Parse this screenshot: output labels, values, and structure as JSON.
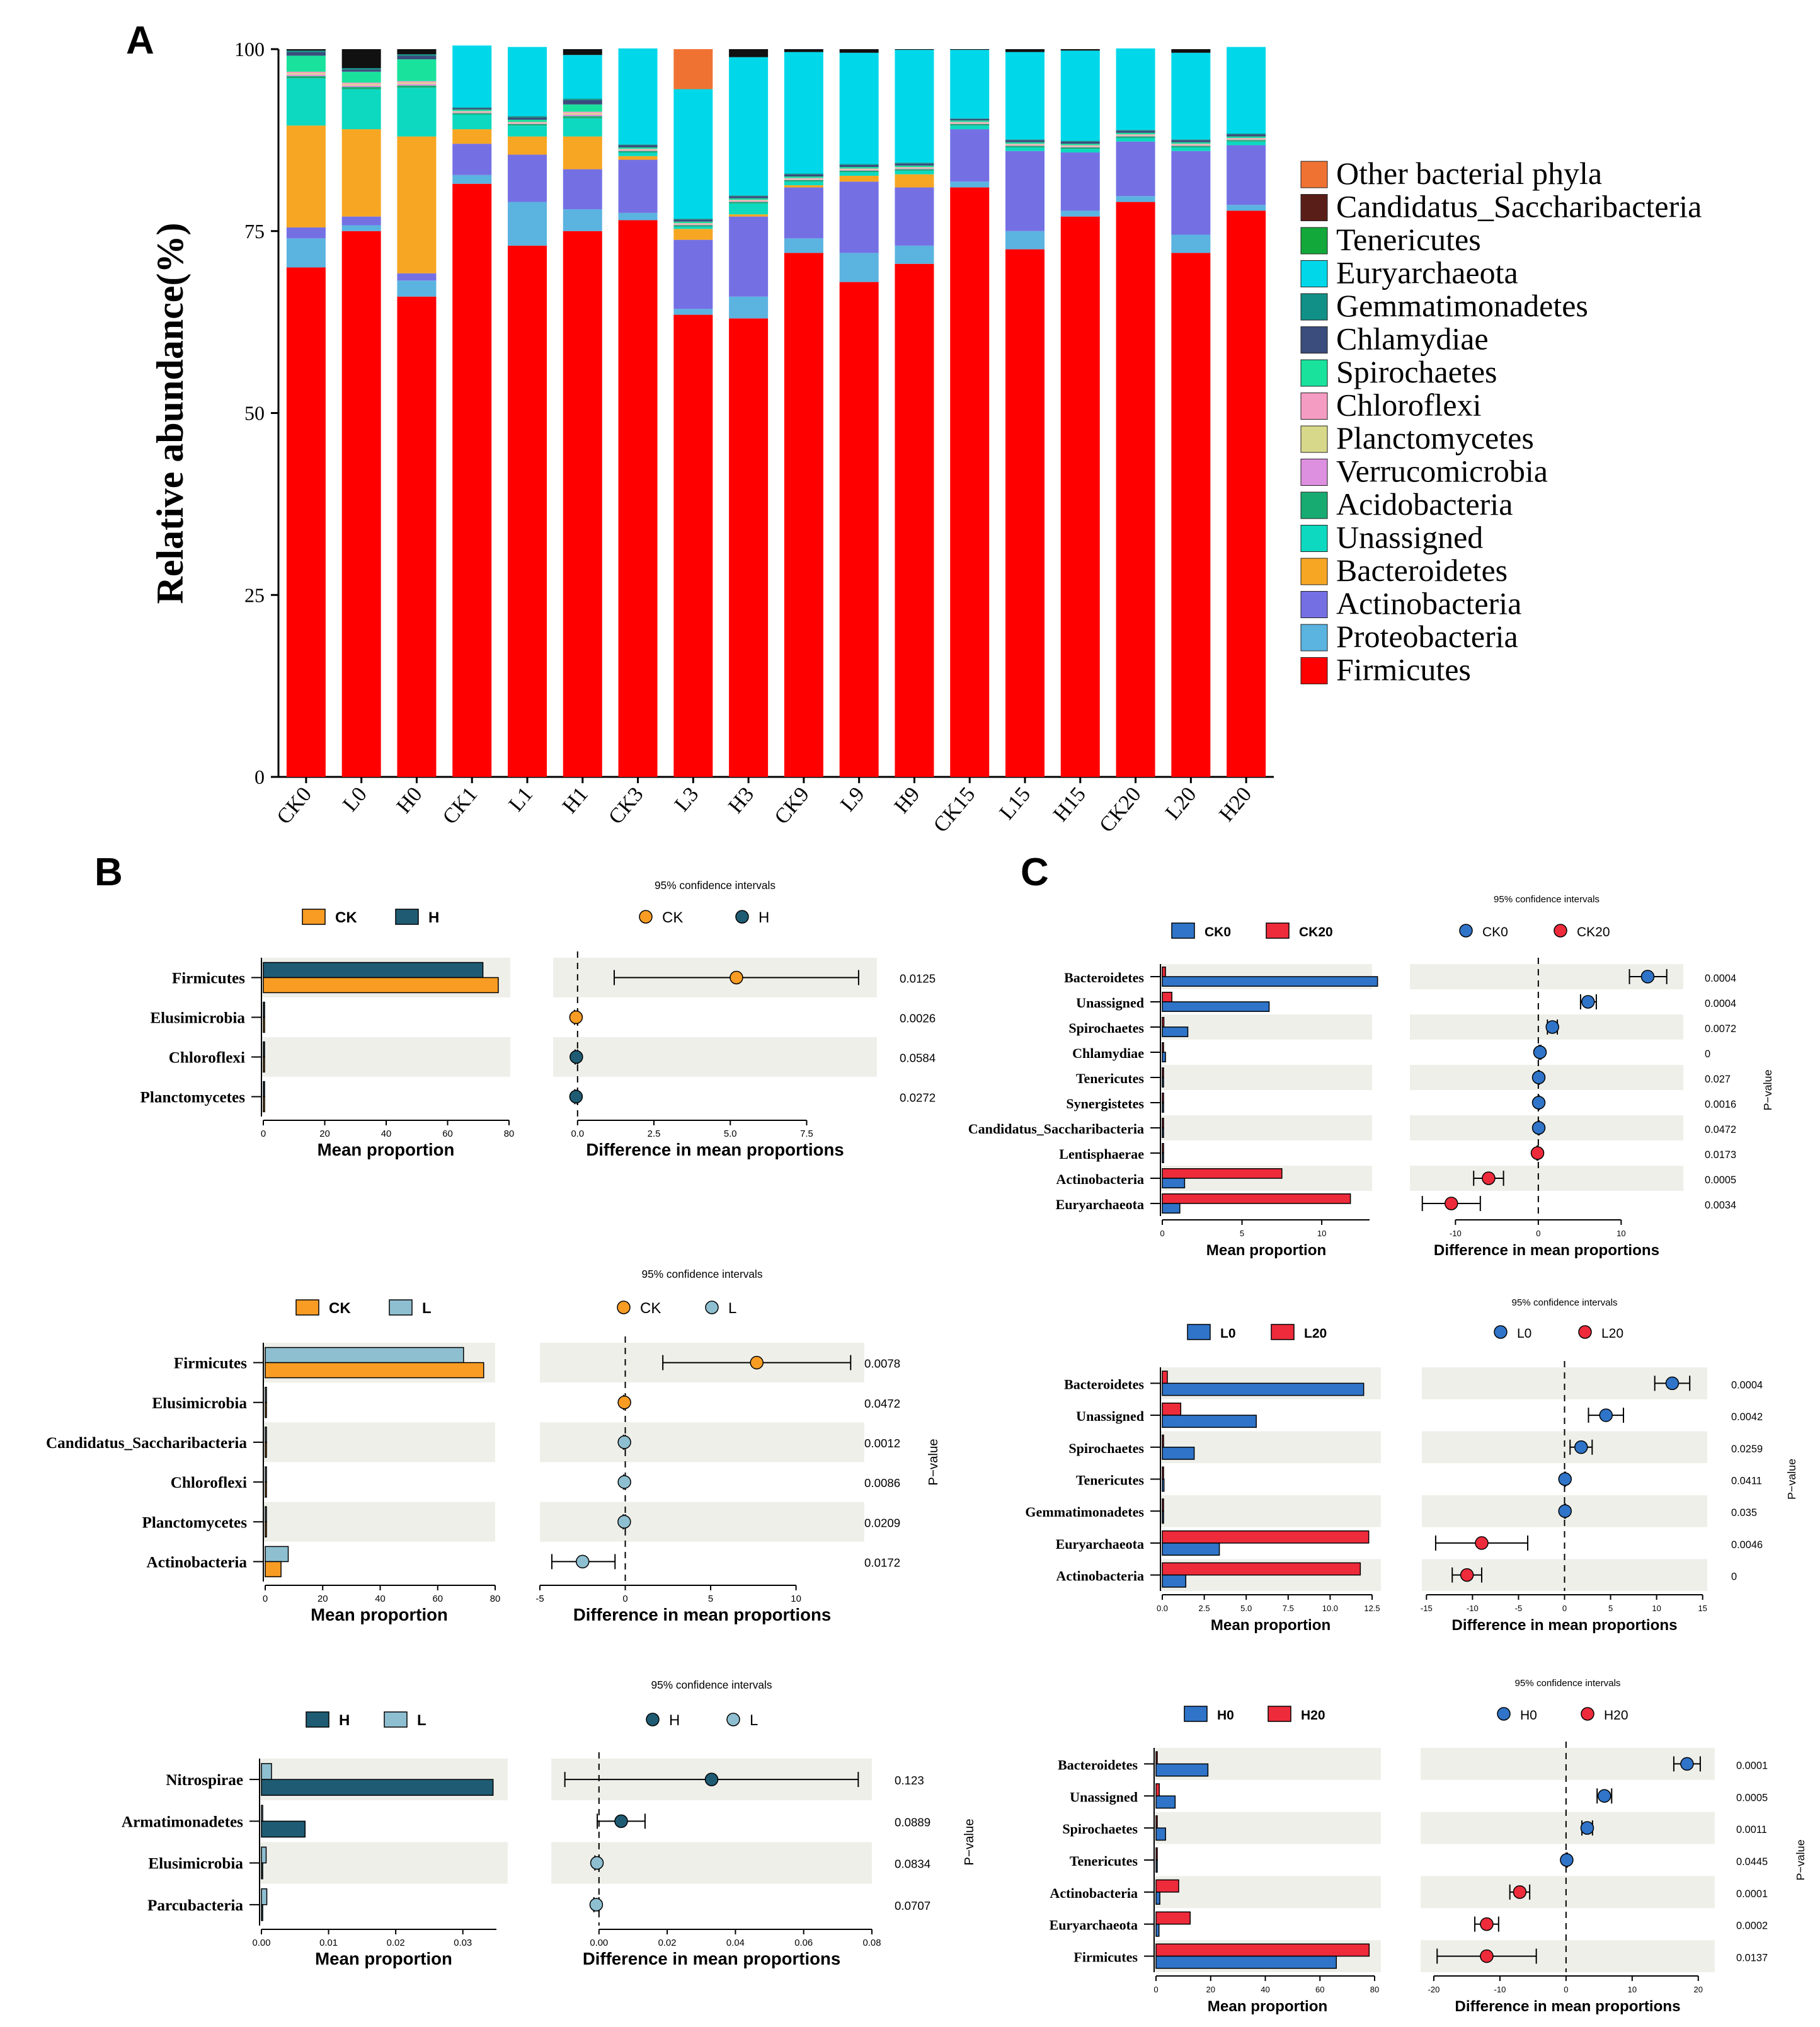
{
  "panels": {
    "a": "A",
    "b": "B",
    "c": "C"
  },
  "colors": {
    "Firmicutes": "#ff0000",
    "Proteobacteria": "#5bb3e0",
    "Actinobacteria": "#7470e4",
    "Bacteroidetes": "#f7a623",
    "Unassigned": "#0dd9c0",
    "Acidobacteria": "#17ab72",
    "Verrucomicrobia": "#dd8fe0",
    "Planctomycetes": "#d8d88a",
    "Chloroflexi": "#f59cc2",
    "Spirochaetes": "#19e29c",
    "Chlamydiae": "#3a4d7c",
    "Gemmatimonadetes": "#109086",
    "Euryarchaeota": "#00d8ea",
    "Tenericutes": "#12a83a",
    "Candidatus_Saccharibacteria": "#5a1e18",
    "Other bacterial phyla": "#f07232",
    "CK_orange": "#f89c24",
    "H_dark": "#1f5c74",
    "L_light": "#8ebfd1",
    "blue": "#2f74c8",
    "red": "#ee2b3b",
    "band": "#efefea"
  },
  "chart_data": [
    {
      "type": "bar",
      "stacked": true,
      "ylabel": "Relative abundance(%)",
      "ylim": [
        0,
        100
      ],
      "yticks": [
        "0",
        "25",
        "50",
        "75",
        "100"
      ],
      "categories": [
        "CK0",
        "L0",
        "H0",
        "CK1",
        "L1",
        "H1",
        "CK3",
        "L3",
        "H3",
        "CK9",
        "L9",
        "H9",
        "CK15",
        "L15",
        "H15",
        "CK20",
        "L20",
        "H20"
      ],
      "series": [
        {
          "name": "Firmicutes",
          "values": [
            70,
            75,
            66,
            81.5,
            73,
            75,
            76.5,
            63.5,
            63,
            72,
            68,
            70.5,
            81,
            72.5,
            77,
            79,
            72,
            77.8
          ]
        },
        {
          "name": "Proteobacteria",
          "values": [
            4,
            0.8,
            2.2,
            1.2,
            6,
            3,
            1,
            0.8,
            3,
            2,
            4,
            2.5,
            0.8,
            2.5,
            0.8,
            0.8,
            2.5,
            0.8
          ]
        },
        {
          "name": "Actinobacteria",
          "values": [
            1.5,
            1.2,
            1,
            4.3,
            6.5,
            5.5,
            7.3,
            9.5,
            11,
            7,
            9.8,
            8,
            7.2,
            11,
            8,
            7.5,
            11.5,
            8.2
          ]
        },
        {
          "name": "Bacteroidetes",
          "values": [
            14,
            12,
            18.8,
            2,
            2.5,
            4.5,
            0.5,
            1.5,
            0.3,
            0.3,
            0.8,
            1.8,
            0,
            0,
            0,
            0,
            0,
            0
          ]
        },
        {
          "name": "Unassigned",
          "values": [
            6.5,
            5.5,
            6.7,
            2,
            1.5,
            2.5,
            0.5,
            0.3,
            1.5,
            0.5,
            0.5,
            0.5,
            0.5,
            0.5,
            0.5,
            0.5,
            0.5,
            0.5
          ]
        },
        {
          "name": "Acidobacteria",
          "values": [
            0.3,
            0.3,
            0.3,
            0.2,
            0.2,
            0.3,
            0.2,
            0.2,
            0.2,
            0.2,
            0.2,
            0.2,
            0.2,
            0.2,
            0.2,
            0.2,
            0.2,
            0.2
          ]
        },
        {
          "name": "Verrucomicrobia",
          "values": [
            0.2,
            0.2,
            0.2,
            0.1,
            0.1,
            0.2,
            0.1,
            0.1,
            0.1,
            0.1,
            0.1,
            0.1,
            0.1,
            0.1,
            0.1,
            0.1,
            0.1,
            0.1
          ]
        },
        {
          "name": "Planctomycetes",
          "values": [
            0.2,
            0.2,
            0.2,
            0.1,
            0.1,
            0.2,
            0.1,
            0.1,
            0.1,
            0.1,
            0.1,
            0.1,
            0.1,
            0.1,
            0.1,
            0.1,
            0.1,
            0.1
          ]
        },
        {
          "name": "Chloroflexi",
          "values": [
            0.2,
            0.2,
            0.2,
            0.1,
            0.1,
            0.2,
            0.1,
            0.1,
            0.1,
            0.1,
            0.1,
            0.1,
            0.1,
            0.1,
            0.1,
            0.1,
            0.1,
            0.1
          ]
        },
        {
          "name": "Spirochaetes",
          "values": [
            2.2,
            1.5,
            3,
            0.2,
            0.3,
            1,
            0.2,
            0.2,
            0.2,
            0.2,
            0.2,
            0.2,
            0.2,
            0.2,
            0.2,
            0.2,
            0.2,
            0.2
          ]
        },
        {
          "name": "Chlamydiae",
          "values": [
            0.5,
            0.3,
            0.5,
            0.2,
            0.3,
            0.6,
            0.3,
            0.3,
            0.3,
            0.3,
            0.3,
            0.3,
            0.2,
            0.3,
            0.3,
            0.3,
            0.3,
            0.3
          ]
        },
        {
          "name": "Gemmatimonadetes",
          "values": [
            0.2,
            0.2,
            0.2,
            0.1,
            0.2,
            0.2,
            0.1,
            0.1,
            0.1,
            0.1,
            0.1,
            0.1,
            0.1,
            0.1,
            0.1,
            0.1,
            0.1,
            0.1
          ]
        },
        {
          "name": "Euryarchaeota",
          "values": [
            0,
            0,
            0,
            8.5,
            9.5,
            6,
            13.2,
            17.8,
            19,
            16.7,
            15.3,
            15.5,
            9.4,
            12,
            12.4,
            11.2,
            11.9,
            11.9
          ]
        },
        {
          "name": "Tenericutes",
          "values": [
            0,
            0,
            0,
            0,
            0,
            0,
            0,
            0,
            0,
            0,
            0,
            0,
            0,
            0,
            0,
            0,
            0,
            0
          ]
        },
        {
          "name": "Candidatus_Saccharibacteria",
          "values": [
            0,
            0,
            0,
            0,
            0,
            0,
            0,
            0,
            0,
            0,
            0,
            0,
            0,
            0,
            0,
            0,
            0,
            0
          ]
        },
        {
          "name": "Other bacterial phyla",
          "values": [
            0,
            0,
            0,
            0,
            0,
            0,
            0,
            5.5,
            0,
            0,
            0,
            0,
            0,
            0,
            0,
            0,
            0,
            0
          ]
        }
      ],
      "legend": [
        "Other bacterial phyla",
        "Candidatus_Saccharibacteria",
        "Tenericutes",
        "Euryarchaeota",
        "Gemmatimonadetes",
        "Chlamydiae",
        "Spirochaetes",
        "Chloroflexi",
        "Planctomycetes",
        "Verrucomicrobia",
        "Acidobacteria",
        "Unassigned",
        "Bacteroidetes",
        "Actinobacteria",
        "Proteobacteria",
        "Firmicutes"
      ],
      "legend_position": "right"
    },
    {
      "panel": "B1",
      "type": "bar+errorbar",
      "groups": [
        "CK",
        "H"
      ],
      "group_colors": [
        "CK_orange",
        "H_dark"
      ],
      "ci_title": "95% confidence intervals",
      "taxa": [
        "Firmicutes",
        "Elusimicrobia",
        "Chloroflexi",
        "Planctomycetes"
      ],
      "bar_axis": {
        "max": 80,
        "ticks": [
          "0",
          "20",
          "40",
          "60",
          "80"
        ],
        "label": "Mean proportion"
      },
      "means": [
        [
          76.5,
          71.5
        ],
        [
          0.1,
          0.0
        ],
        [
          0.0,
          0.1
        ],
        [
          0.0,
          0.05
        ]
      ],
      "diff_axis": {
        "min": -0.8,
        "max": 9.8,
        "ticks": [
          "0.0",
          "2.5",
          "5.0",
          "7.5"
        ],
        "label": "Difference in mean proportions"
      },
      "diffs": [
        [
          5.2,
          1.2,
          9.2
        ],
        [
          -0.05,
          -0.1,
          0.0
        ],
        [
          -0.04,
          -0.08,
          0.0
        ],
        [
          -0.05,
          -0.09,
          -0.01
        ]
      ],
      "dot_group": [
        0,
        0,
        1,
        1
      ],
      "pvalues": [
        "0.0125",
        "0.0026",
        "0.0584",
        "0.0272"
      ]
    },
    {
      "panel": "B2",
      "type": "bar+errorbar",
      "groups": [
        "CK",
        "L"
      ],
      "group_colors": [
        "CK_orange",
        "L_light"
      ],
      "ci_title": "95% confidence intervals",
      "taxa": [
        "Firmicutes",
        "Elusimicrobia",
        "Candidatus_Saccharibacteria",
        "Chloroflexi",
        "Planctomycetes",
        "Actinobacteria"
      ],
      "bar_axis": {
        "max": 80,
        "ticks": [
          "0",
          "20",
          "40",
          "60",
          "80"
        ],
        "label": "Mean proportion"
      },
      "means": [
        [
          76,
          69
        ],
        [
          0.1,
          0.0
        ],
        [
          0.0,
          0.1
        ],
        [
          0.0,
          0.1
        ],
        [
          0.0,
          0.1
        ],
        [
          5.5,
          8
        ]
      ],
      "diff_axis": {
        "min": -5,
        "max": 14,
        "ticks": [
          "-5",
          "0",
          "5",
          "10"
        ],
        "label": "Difference in mean proportions"
      },
      "diffs": [
        [
          7.7,
          2.2,
          13.2
        ],
        [
          -0.05,
          -0.1,
          0.0
        ],
        [
          -0.05,
          -0.1,
          0.0
        ],
        [
          -0.05,
          -0.1,
          0.0
        ],
        [
          -0.06,
          -0.12,
          0.0
        ],
        [
          -2.5,
          -4.3,
          -0.6
        ]
      ],
      "dot_group": [
        0,
        0,
        1,
        1,
        1,
        1
      ],
      "pvalues": [
        "0.0078",
        "0.0472",
        "0.0012",
        "0.0086",
        "0.0209",
        "0.0172"
      ],
      "pvalue_label": "P−value"
    },
    {
      "panel": "B3",
      "type": "bar+errorbar",
      "groups": [
        "H",
        "L"
      ],
      "group_colors": [
        "H_dark",
        "L_light"
      ],
      "ci_title": "95% confidence intervals",
      "taxa": [
        "Nitrospirae",
        "Armatimonadetes",
        "Elusimicrobia",
        "Parcubacteria"
      ],
      "bar_axis": {
        "max": 0.035,
        "ticks": [
          "0.00",
          "0.01",
          "0.02",
          "0.03"
        ],
        "label": "Mean proportion"
      },
      "means": [
        [
          0.0345,
          0.0015
        ],
        [
          0.0065,
          0.0
        ],
        [
          0.0,
          0.0007
        ],
        [
          0.0,
          0.0008
        ]
      ],
      "diff_axis": {
        "min": -0.014,
        "max": 0.08,
        "ticks": [
          "0.00",
          "0.02",
          "0.04",
          "0.06",
          "0.08"
        ],
        "label": "Difference in mean proportions"
      },
      "diffs": [
        [
          0.033,
          -0.01,
          0.076
        ],
        [
          0.0065,
          -0.0005,
          0.0135
        ],
        [
          -0.0006,
          -0.0012,
          0.0
        ],
        [
          -0.0008,
          -0.0015,
          0.0
        ]
      ],
      "dot_group": [
        0,
        0,
        1,
        1
      ],
      "pvalues": [
        "0.123",
        "0.0889",
        "0.0834",
        "0.0707"
      ],
      "pvalue_label": "P−value"
    },
    {
      "panel": "C1",
      "type": "bar+errorbar",
      "groups": [
        "CK0",
        "CK20"
      ],
      "group_colors": [
        "blue",
        "red"
      ],
      "ci_title": "95% confidence intervals",
      "taxa": [
        "Bacteroidetes",
        "Unassigned",
        "Spirochaetes",
        "Chlamydiae",
        "Tenericutes",
        "Synergistetes",
        "Candidatus_Saccharibacteria",
        "Lentisphaerae",
        "Actinobacteria",
        "Euryarchaeota"
      ],
      "bar_axis": {
        "max": 13,
        "ticks": [
          "0",
          "5",
          "10"
        ],
        "label": "Mean proportion"
      },
      "means": [
        [
          13.5,
          0.2
        ],
        [
          6.7,
          0.6
        ],
        [
          1.6,
          0.1
        ],
        [
          0.2,
          0.0
        ],
        [
          0.05,
          0.0
        ],
        [
          0.05,
          0.0
        ],
        [
          0.05,
          0.0
        ],
        [
          0.0,
          0.05
        ],
        [
          1.4,
          7.5
        ],
        [
          1.1,
          11.8
        ]
      ],
      "diff_axis": {
        "min": -15.5,
        "max": 17.5,
        "ticks": [
          "-10",
          "0",
          "10"
        ],
        "label": "Difference in mean proportions"
      },
      "diffs": [
        [
          13.2,
          11,
          15.5
        ],
        [
          6,
          5.1,
          7
        ],
        [
          1.7,
          1.1,
          2.3
        ],
        [
          0.2,
          0.1,
          0.3
        ],
        [
          0.05,
          0,
          0.1
        ],
        [
          0.05,
          0,
          0.1
        ],
        [
          0.05,
          0,
          0.1
        ],
        [
          -0.1,
          -0.15,
          -0.05
        ],
        [
          -6,
          -7.8,
          -4.2
        ],
        [
          -10.5,
          -14,
          -7
        ]
      ],
      "dot_group": [
        0,
        0,
        0,
        0,
        0,
        0,
        0,
        1,
        1,
        1
      ],
      "pvalues": [
        "0.0004",
        "0.0004",
        "0.0072",
        "0",
        "0.027",
        "0.0016",
        "0.0472",
        "0.0173",
        "0.0005",
        "0.0034"
      ],
      "pvalue_label": "P−value"
    },
    {
      "panel": "C2",
      "type": "bar+errorbar",
      "groups": [
        "L0",
        "L20"
      ],
      "group_colors": [
        "blue",
        "red"
      ],
      "ci_title": "95% confidence intervals",
      "taxa": [
        "Bacteroidetes",
        "Unassigned",
        "Spirochaetes",
        "Tenericutes",
        "Gemmatimonadetes",
        "Euryarchaeota",
        "Actinobacteria"
      ],
      "bar_axis": {
        "max": 12.5,
        "ticks": [
          "0.0",
          "2.5",
          "5.0",
          "7.5",
          "10.0",
          "12.5"
        ],
        "label": "Mean proportion"
      },
      "means": [
        [
          12,
          0.3
        ],
        [
          5.6,
          1.1
        ],
        [
          1.9,
          0.05
        ],
        [
          0.1,
          0.0
        ],
        [
          0.05,
          0.0
        ],
        [
          3.4,
          12.3
        ],
        [
          1.4,
          11.8
        ]
      ],
      "diff_axis": {
        "min": -15.5,
        "max": 15.5,
        "ticks": [
          "-15",
          "-10",
          "-5",
          "0",
          "5",
          "10",
          "15"
        ],
        "label": "Difference in mean proportions"
      },
      "diffs": [
        [
          11.7,
          9.8,
          13.6
        ],
        [
          4.5,
          2.6,
          6.4
        ],
        [
          1.8,
          0.6,
          3
        ],
        [
          0.05,
          0,
          0.1
        ],
        [
          0.05,
          0,
          0.1
        ],
        [
          -9,
          -14,
          -4
        ],
        [
          -10.6,
          -12.2,
          -9
        ]
      ],
      "dot_group": [
        0,
        0,
        0,
        0,
        0,
        1,
        1
      ],
      "pvalues": [
        "0.0004",
        "0.0042",
        "0.0259",
        "0.0411",
        "0.035",
        "0.0046",
        "0"
      ],
      "pvalue_label": "P−value"
    },
    {
      "panel": "C3",
      "type": "bar+errorbar",
      "groups": [
        "H0",
        "H20"
      ],
      "group_colors": [
        "blue",
        "red"
      ],
      "ci_title": "95% confidence intervals",
      "taxa": [
        "Bacteroidetes",
        "Unassigned",
        "Spirochaetes",
        "Tenericutes",
        "Actinobacteria",
        "Euryarchaeota",
        "Firmicutes"
      ],
      "bar_axis": {
        "max": 80,
        "ticks": [
          "0",
          "20",
          "40",
          "60",
          "80"
        ],
        "label": "Mean proportion"
      },
      "means": [
        [
          19,
          0.3
        ],
        [
          7,
          1.2
        ],
        [
          3.5,
          0.1
        ],
        [
          0.2,
          0.0
        ],
        [
          1.4,
          8.3
        ],
        [
          1.1,
          12.5
        ],
        [
          66,
          78
        ]
      ],
      "diff_axis": {
        "min": -22,
        "max": 22.5,
        "ticks": [
          "-20",
          "-10",
          "0",
          "10",
          "20"
        ],
        "label": "Difference in mean proportions"
      },
      "diffs": [
        [
          18.3,
          16.3,
          20.3
        ],
        [
          5.8,
          4.7,
          6.9
        ],
        [
          3.2,
          2.4,
          4
        ],
        [
          0.1,
          0,
          0.2
        ],
        [
          -7,
          -8.5,
          -5.5
        ],
        [
          -12,
          -13.8,
          -10.2
        ],
        [
          -12,
          -19.5,
          -4.5
        ]
      ],
      "dot_group": [
        0,
        0,
        0,
        0,
        1,
        1,
        1
      ],
      "pvalues": [
        "0.0001",
        "0.0005",
        "0.0011",
        "0.0445",
        "0.0001",
        "0.0002",
        "0.0137"
      ],
      "pvalue_label": "P−value"
    }
  ]
}
